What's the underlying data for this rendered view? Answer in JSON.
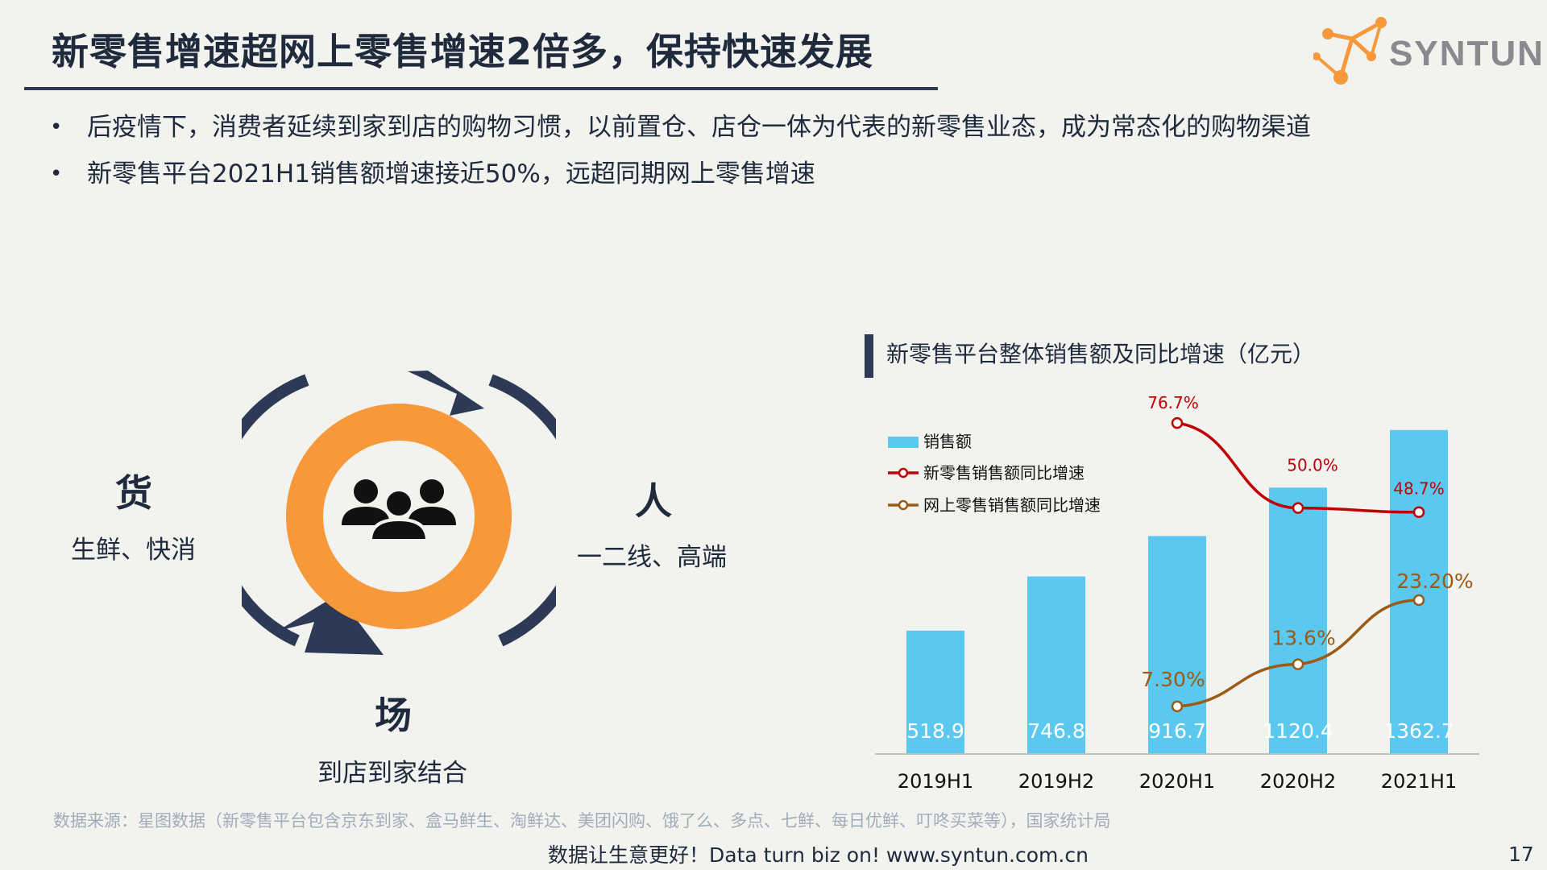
{
  "title": "新零售增速超网上零售增速2倍多，保持快速发展",
  "logo": {
    "text": "SYNTUN"
  },
  "bullets": [
    "后疫情下，消费者延续到家到店的购物习惯，以前置仓、店仓一体为代表的新零售业态，成为常态化的购物渠道",
    "新零售平台2021H1销售额增速接近50%，远超同期网上零售增速"
  ],
  "cycle": {
    "icon": "people-group-icon",
    "goods": {
      "title": "货",
      "sub": "生鲜、快消"
    },
    "people": {
      "title": "人",
      "sub": "一二线、高端"
    },
    "place": {
      "title": "场",
      "sub": "到店到家结合"
    }
  },
  "colors": {
    "navy": "#2c3a55",
    "orange": "#f7993a",
    "bar": "#5bc8f0",
    "new_retail_line": "#c00000",
    "online_retail_line": "#9c5a14"
  },
  "chart_title": "新零售平台整体销售额及同比增速（亿元）",
  "chart_data": {
    "type": "bar",
    "categories": [
      "2019H1",
      "2019H2",
      "2020H1",
      "2020H2",
      "2021H1"
    ],
    "ylim": [
      0,
      1450
    ],
    "grid": false,
    "legend_position": "top-left",
    "series": [
      {
        "name": "销售额",
        "type": "bar",
        "values": [
          518.9,
          746.8,
          916.7,
          1120.4,
          1362.7
        ],
        "labels": [
          "518.9",
          "746.8",
          "916.7",
          "1120.4",
          "1362.7"
        ]
      },
      {
        "name": "新零售销售额同比增速",
        "type": "line",
        "unit": "%",
        "values": [
          null,
          null,
          76.7,
          50.0,
          48.7
        ],
        "labels": [
          "",
          "",
          "76.7%",
          "50.0%",
          "48.7%"
        ]
      },
      {
        "name": "网上零售销售额同比增速",
        "type": "line",
        "unit": "%",
        "values": [
          null,
          null,
          7.3,
          13.6,
          23.2
        ],
        "labels": [
          "",
          "",
          "7.30%",
          "13.6%",
          "23.20%"
        ]
      }
    ]
  },
  "source": "数据来源：星图数据（新零售平台包含京东到家、盒马鲜生、淘鲜达、美团闪购、饿了么、多点、七鲜、每日优鲜、叮咚买菜等），国家统计局",
  "footer": "数据让生意更好！Data turn biz on!  www.syntun.com.cn",
  "page_number": "17"
}
